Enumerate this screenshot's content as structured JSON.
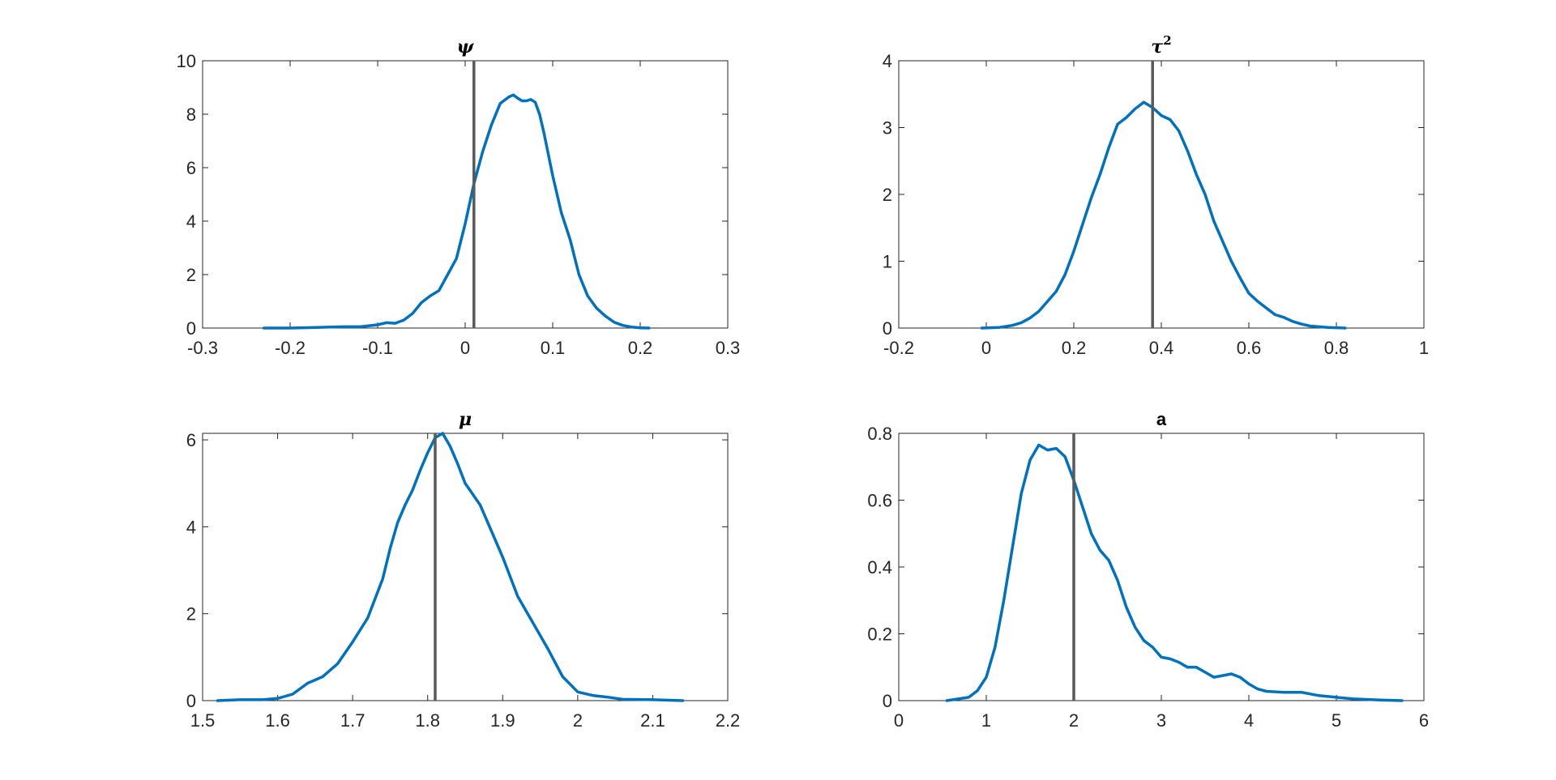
{
  "chart_data": [
    {
      "type": "line",
      "title": "ψ",
      "xlim": [
        -0.3,
        0.3
      ],
      "ylim": [
        0,
        10
      ],
      "xticks": [
        -0.3,
        -0.2,
        -0.1,
        0,
        0.1,
        0.2,
        0.3
      ],
      "xtick_labels": [
        "-0.3",
        "-0.2",
        "-0.1",
        "0",
        "0.1",
        "0.2",
        "0.3"
      ],
      "yticks": [
        0,
        2,
        4,
        6,
        8,
        10
      ],
      "ytick_labels": [
        "0",
        "2",
        "4",
        "6",
        "8",
        "10"
      ],
      "grid": false,
      "vline": 0.01,
      "series": [
        {
          "color": "#0072BD",
          "x": [
            -0.23,
            -0.2,
            -0.17,
            -0.14,
            -0.12,
            -0.1,
            -0.09,
            -0.08,
            -0.07,
            -0.06,
            -0.05,
            -0.04,
            -0.03,
            -0.02,
            -0.01,
            0.0,
            0.01,
            0.02,
            0.03,
            0.04,
            0.05,
            0.055,
            0.06,
            0.065,
            0.07,
            0.075,
            0.08,
            0.085,
            0.09,
            0.1,
            0.11,
            0.12,
            0.13,
            0.14,
            0.15,
            0.16,
            0.17,
            0.18,
            0.19,
            0.2,
            0.21
          ],
          "y": [
            0.0,
            0.0,
            0.02,
            0.05,
            0.05,
            0.12,
            0.2,
            0.18,
            0.3,
            0.55,
            0.95,
            1.2,
            1.4,
            2.0,
            2.6,
            3.9,
            5.4,
            6.6,
            7.6,
            8.4,
            8.65,
            8.72,
            8.6,
            8.5,
            8.5,
            8.55,
            8.45,
            8.0,
            7.3,
            5.7,
            4.3,
            3.3,
            2.0,
            1.2,
            0.75,
            0.45,
            0.22,
            0.1,
            0.04,
            0.01,
            0.0
          ]
        }
      ]
    },
    {
      "type": "line",
      "title": "τ",
      "title_superscript": "2",
      "xlim": [
        -0.2,
        1
      ],
      "ylim": [
        0,
        4
      ],
      "xticks": [
        -0.2,
        0,
        0.2,
        0.4,
        0.6,
        0.8,
        1
      ],
      "xtick_labels": [
        "-0.2",
        "0",
        "0.2",
        "0.4",
        "0.6",
        "0.8",
        "1"
      ],
      "yticks": [
        0,
        1,
        2,
        3,
        4
      ],
      "ytick_labels": [
        "0",
        "1",
        "2",
        "3",
        "4"
      ],
      "grid": false,
      "vline": 0.38,
      "series": [
        {
          "color": "#0072BD",
          "x": [
            -0.01,
            0.03,
            0.06,
            0.08,
            0.1,
            0.12,
            0.14,
            0.16,
            0.18,
            0.2,
            0.22,
            0.24,
            0.26,
            0.28,
            0.3,
            0.32,
            0.34,
            0.36,
            0.38,
            0.4,
            0.42,
            0.44,
            0.46,
            0.48,
            0.5,
            0.52,
            0.54,
            0.56,
            0.58,
            0.6,
            0.62,
            0.64,
            0.66,
            0.68,
            0.7,
            0.72,
            0.74,
            0.76,
            0.78,
            0.82
          ],
          "y": [
            0.0,
            0.01,
            0.04,
            0.08,
            0.15,
            0.25,
            0.4,
            0.55,
            0.8,
            1.15,
            1.55,
            1.95,
            2.3,
            2.7,
            3.05,
            3.15,
            3.28,
            3.38,
            3.3,
            3.18,
            3.12,
            2.95,
            2.65,
            2.3,
            2.0,
            1.6,
            1.3,
            1.0,
            0.75,
            0.52,
            0.4,
            0.3,
            0.2,
            0.16,
            0.1,
            0.06,
            0.03,
            0.02,
            0.01,
            0.0
          ]
        }
      ]
    },
    {
      "type": "line",
      "title": "μ",
      "xlim": [
        1.5,
        2.2
      ],
      "ylim": [
        0,
        6.15
      ],
      "xticks": [
        1.5,
        1.6,
        1.7,
        1.8,
        1.9,
        2,
        2.1,
        2.2
      ],
      "xtick_labels": [
        "1.5",
        "1.6",
        "1.7",
        "1.8",
        "1.9",
        "2",
        "2.1",
        "2.2"
      ],
      "yticks": [
        0,
        2,
        4,
        6
      ],
      "ytick_labels": [
        "0",
        "2",
        "4",
        "6"
      ],
      "grid": false,
      "vline": 1.81,
      "series": [
        {
          "color": "#0072BD",
          "x": [
            1.52,
            1.55,
            1.58,
            1.6,
            1.62,
            1.64,
            1.66,
            1.68,
            1.7,
            1.72,
            1.74,
            1.75,
            1.76,
            1.77,
            1.78,
            1.79,
            1.8,
            1.81,
            1.82,
            1.83,
            1.84,
            1.85,
            1.86,
            1.87,
            1.88,
            1.9,
            1.92,
            1.94,
            1.96,
            1.98,
            2.0,
            2.02,
            2.04,
            2.06,
            2.1,
            2.14
          ],
          "y": [
            0.0,
            0.02,
            0.02,
            0.05,
            0.15,
            0.4,
            0.55,
            0.85,
            1.35,
            1.9,
            2.8,
            3.5,
            4.1,
            4.5,
            4.85,
            5.3,
            5.7,
            6.05,
            6.15,
            5.85,
            5.45,
            5.0,
            4.75,
            4.5,
            4.1,
            3.3,
            2.4,
            1.8,
            1.2,
            0.55,
            0.2,
            0.12,
            0.08,
            0.03,
            0.02,
            0.0
          ]
        }
      ]
    },
    {
      "type": "line",
      "title": "a",
      "xlim": [
        0,
        6
      ],
      "ylim": [
        0,
        0.8
      ],
      "xticks": [
        0,
        1,
        2,
        3,
        4,
        5,
        6
      ],
      "xtick_labels": [
        "0",
        "1",
        "2",
        "3",
        "4",
        "5",
        "6"
      ],
      "yticks": [
        0,
        0.2,
        0.4,
        0.6,
        0.8
      ],
      "ytick_labels": [
        "0",
        "0.2",
        "0.4",
        "0.6",
        "0.8"
      ],
      "grid": false,
      "vline": 2.0,
      "series": [
        {
          "color": "#0072BD",
          "x": [
            0.55,
            0.8,
            0.9,
            1.0,
            1.1,
            1.2,
            1.3,
            1.4,
            1.5,
            1.6,
            1.7,
            1.8,
            1.9,
            2.0,
            2.1,
            2.2,
            2.3,
            2.4,
            2.5,
            2.6,
            2.7,
            2.8,
            2.9,
            3.0,
            3.1,
            3.2,
            3.3,
            3.4,
            3.5,
            3.6,
            3.7,
            3.8,
            3.9,
            4.0,
            4.1,
            4.2,
            4.4,
            4.6,
            4.8,
            5.0,
            5.2,
            5.5,
            5.75
          ],
          "y": [
            0.0,
            0.01,
            0.03,
            0.07,
            0.16,
            0.3,
            0.46,
            0.62,
            0.72,
            0.765,
            0.75,
            0.755,
            0.73,
            0.66,
            0.58,
            0.5,
            0.45,
            0.42,
            0.36,
            0.28,
            0.22,
            0.18,
            0.16,
            0.13,
            0.125,
            0.115,
            0.1,
            0.1,
            0.085,
            0.07,
            0.075,
            0.08,
            0.07,
            0.05,
            0.035,
            0.028,
            0.025,
            0.025,
            0.015,
            0.01,
            0.005,
            0.002,
            0.0
          ]
        }
      ]
    }
  ]
}
